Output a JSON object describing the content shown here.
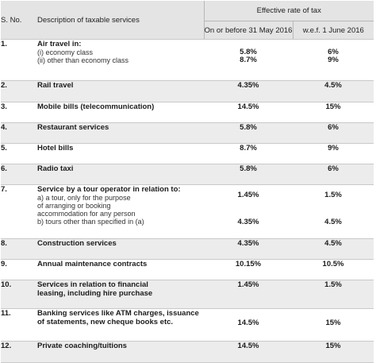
{
  "header": {
    "sno": "S. No.",
    "description": "Description of taxable services",
    "effective": "Effective rate of tax",
    "col_old": "On or before 31 May 2016",
    "col_new": "w.e.f. 1 June 2016"
  },
  "rows": [
    {
      "no": "1.",
      "title": "Air travel in:",
      "sub": [
        "(i) economy class",
        "(ii) other than economy class"
      ],
      "old": [
        "5.8%",
        "8.7%"
      ],
      "new": [
        "6%",
        "9%"
      ]
    },
    {
      "no": "2.",
      "title": "Rail travel",
      "old": "4.35%",
      "new": "4.5%"
    },
    {
      "no": "3.",
      "title": "Mobile bills (telecommunication)",
      "old": "14.5%",
      "new": "15%"
    },
    {
      "no": "4.",
      "title": "Restaurant services",
      "old": "5.8%",
      "new": "6%"
    },
    {
      "no": "5.",
      "title": "Hotel bills",
      "old": "8.7%",
      "new": "9%"
    },
    {
      "no": "6.",
      "title": "Radio taxi",
      "old": "5.8%",
      "new": "6%"
    },
    {
      "no": "7.",
      "title": [
        "Service by a tour operator in relation to:"
      ],
      "sub": [
        "a) a tour, only for the purpose",
        "of arranging or booking",
        "accommodation for any person",
        "b) tours other than specified in (a)"
      ],
      "old": [
        "1.45%",
        "4.35%"
      ],
      "new": [
        "1.5%",
        "4.5%"
      ]
    },
    {
      "no": "8.",
      "title": "Construction services",
      "old": "4.35%",
      "new": "4.5%"
    },
    {
      "no": "9.",
      "title": "Annual maintenance contracts",
      "old": "10.15%",
      "new": "10.5%"
    },
    {
      "no": "10.",
      "title": [
        "Services in relation to financial",
        "leasing, including hire purchase"
      ],
      "old": "1.45%",
      "new": "1.5%"
    },
    {
      "no": "11.",
      "title": [
        "Banking services like ATM charges, issuance",
        "of statements, new cheque books etc."
      ],
      "old": "14.5%",
      "new": "15%"
    },
    {
      "no": "12.",
      "title": "Private coaching/tuitions",
      "old": "14.5%",
      "new": "15%"
    }
  ]
}
